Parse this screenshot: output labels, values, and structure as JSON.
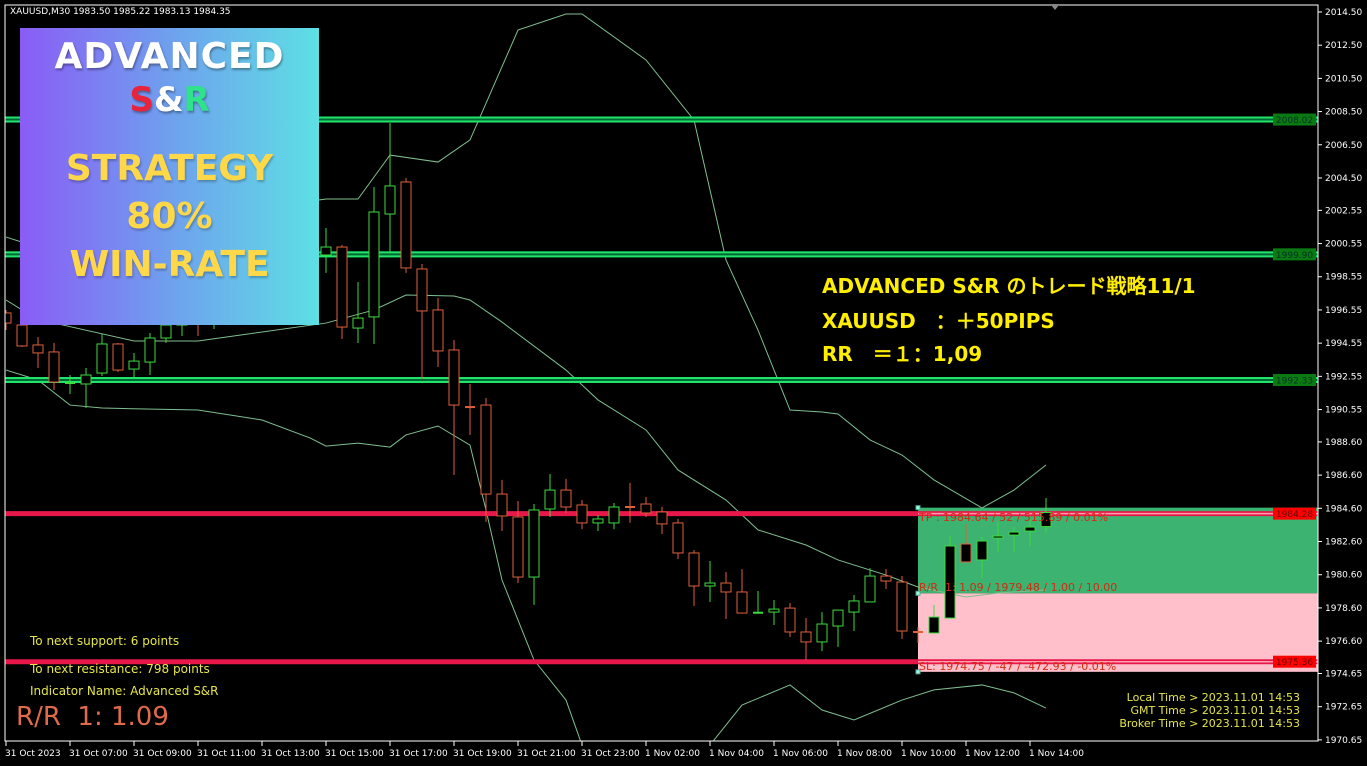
{
  "header": {
    "symbol_line": "XAUUSD,M30  1983.50 1985.22 1983.13 1984.35"
  },
  "banner": {
    "line1": "ADVANCED",
    "s": "S",
    "amp": "&",
    "r": "R",
    "line3": "STRATEGY",
    "line4": "80%",
    "line5": "WIN-RATE"
  },
  "overlay": {
    "title": "ADVANCED S&R のトレード戦略11/1",
    "result": "XAUUSD　：＋50PIPS",
    "rr": "RR　＝１：1,09"
  },
  "info": {
    "support": "To next support: 6 points",
    "resistance": "To next resistance: 798 points",
    "indicator": "Indicator Name: Advanced S&R",
    "rr_big": "R/R  1: 1.09"
  },
  "clock": {
    "local": "Local Time > 2023.11.01 14:53",
    "gmt": "GMT Time > 2023.11.01 14:53",
    "broker": "Broker Time > 2023.11.01 14:53"
  },
  "position": {
    "tp_label": "TP : 1984.64 / 52 / 515.89 / 0.01%",
    "rr_label": "R/R  1: 1.09 / 1979.48 / 1.00 / 10.00",
    "sl_label": "SL: 1974.75 / -47 / -472.93 / -0.01%",
    "tp": 1984.64,
    "entry": 1979.48,
    "sl": 1974.75,
    "start_time": "11-01 10:30",
    "profit_color": "#3cb371",
    "loss_color": "#ffc0cb"
  },
  "colors": {
    "bull": "#3ddc3d",
    "bear": "#e0603a",
    "band": "#7fbf8f",
    "support": "#22e36a",
    "resistance": "#e8174a"
  },
  "chart_data": {
    "type": "candlestick",
    "symbol": "XAUUSD",
    "timeframe": "M30",
    "ylim": [
      1970.65,
      2014.5
    ],
    "y_ticks": [
      "2014.50",
      "2012.50",
      "2010.50",
      "2008.50",
      "2006.50",
      "2004.50",
      "2002.55",
      "2000.55",
      "1998.55",
      "1996.55",
      "1994.55",
      "1992.55",
      "1990.55",
      "1988.60",
      "1986.60",
      "1984.60",
      "1982.60",
      "1980.60",
      "1978.60",
      "1976.60",
      "1974.65",
      "1972.65",
      "1970.65"
    ],
    "x_ticks": [
      {
        "t": "10-31 05:00",
        "label": "31 Oct 2023"
      },
      {
        "t": "10-31 07:00",
        "label": "31 Oct 07:00"
      },
      {
        "t": "10-31 09:00",
        "label": "31 Oct 09:00"
      },
      {
        "t": "10-31 11:00",
        "label": "31 Oct 11:00"
      },
      {
        "t": "10-31 13:00",
        "label": "31 Oct 13:00"
      },
      {
        "t": "10-31 15:00",
        "label": "31 Oct 15:00"
      },
      {
        "t": "10-31 17:00",
        "label": "31 Oct 17:00"
      },
      {
        "t": "10-31 19:00",
        "label": "31 Oct 19:00"
      },
      {
        "t": "10-31 21:00",
        "label": "31 Oct 21:00"
      },
      {
        "t": "10-31 23:00",
        "label": "31 Oct 23:00"
      },
      {
        "t": "11-01 02:00",
        "label": "1 Nov 02:00"
      },
      {
        "t": "11-01 04:00",
        "label": "1 Nov 04:00"
      },
      {
        "t": "11-01 06:00",
        "label": "1 Nov 06:00"
      },
      {
        "t": "11-01 08:00",
        "label": "1 Nov 08:00"
      },
      {
        "t": "11-01 10:00",
        "label": "1 Nov 10:00"
      },
      {
        "t": "11-01 12:00",
        "label": "1 Nov 12:00"
      },
      {
        "t": "11-01 14:00",
        "label": "1 Nov 14:00"
      }
    ],
    "candles_columns": [
      "time",
      "open",
      "high",
      "low",
      "close"
    ],
    "candles": [
      [
        "10-31 05:00",
        1996.37,
        1996.55,
        1995.34,
        1995.76
      ],
      [
        "10-31 05:30",
        1995.64,
        1995.94,
        1994.32,
        1994.38
      ],
      [
        "10-31 06:00",
        1994.44,
        1994.92,
        1993.05,
        1993.96
      ],
      [
        "10-31 06:30",
        1994.02,
        1994.56,
        1991.73,
        1992.21
      ],
      [
        "10-31 07:00",
        1992.09,
        1992.63,
        1991.49,
        1992.15
      ],
      [
        "10-31 07:30",
        1992.09,
        1993.05,
        1990.64,
        1992.63
      ],
      [
        "10-31 08:00",
        1992.75,
        1995.1,
        1992.57,
        1994.5
      ],
      [
        "10-31 08:30",
        1994.5,
        1994.56,
        1992.81,
        1992.93
      ],
      [
        "10-31 09:00",
        1992.99,
        1993.96,
        1992.45,
        1993.47
      ],
      [
        "10-31 09:30",
        1993.41,
        1995.16,
        1992.63,
        1994.86
      ],
      [
        "10-31 10:00",
        1994.86,
        1995.94,
        1994.56,
        1995.64
      ],
      [
        "10-31 10:30",
        1995.64,
        1996.25,
        1994.98,
        1996.06
      ],
      [
        "10-31 11:00",
        1996.25,
        1996.43,
        1994.98,
        1995.94
      ],
      [
        "10-31 11:30",
        1995.94,
        1996.85,
        1995.4,
        1996.43
      ],
      [
        "10-31 12:00",
        null,
        null,
        null,
        null
      ],
      [
        "10-31 12:30",
        null,
        null,
        null,
        null
      ],
      [
        "10-31 13:00",
        null,
        null,
        null,
        null
      ],
      [
        "10-31 13:30",
        null,
        null,
        null,
        null
      ],
      [
        "10-31 14:00",
        null,
        null,
        null,
        null
      ],
      [
        "10-31 14:30",
        null,
        null,
        null,
        null
      ],
      [
        "10-31 15:00",
        1999.86,
        2001.49,
        1998.78,
        2000.34
      ],
      [
        "10-31 15:30",
        2000.34,
        2000.46,
        1994.8,
        1995.52
      ],
      [
        "10-31 16:00",
        1995.46,
        1998.23,
        1994.56,
        1996.06
      ],
      [
        "10-31 16:30",
        1996.13,
        2003.96,
        1994.5,
        2002.45
      ],
      [
        "10-31 17:00",
        2002.33,
        2007.81,
        1999.98,
        2004.02
      ],
      [
        "10-31 17:30",
        2004.26,
        2004.5,
        1998.78,
        1999.08
      ],
      [
        "10-31 18:00",
        1999.02,
        1999.32,
        1992.39,
        1996.49
      ],
      [
        "10-31 18:30",
        1996.55,
        1997.27,
        1993.11,
        1994.08
      ],
      [
        "10-31 19:00",
        1994.14,
        1994.74,
        1986.61,
        1990.82
      ],
      [
        "10-31 19:30",
        1990.7,
        1992.09,
        1989.02,
        1990.68
      ],
      [
        "10-31 20:00",
        1990.82,
        1991.25,
        1983.78,
        1985.46
      ],
      [
        "10-31 20:30",
        1985.46,
        1986.31,
        1983.23,
        1984.14
      ],
      [
        "10-31 21:00",
        1984.08,
        1985.04,
        1980.1,
        1980.46
      ],
      [
        "10-31 21:30",
        1980.46,
        1984.86,
        1978.78,
        1984.5
      ],
      [
        "10-31 22:00",
        1984.56,
        1986.67,
        1984.08,
        1985.7
      ],
      [
        "10-31 22:30",
        1985.7,
        1986.37,
        1984.32,
        1984.68
      ],
      [
        "10-31 23:00",
        1984.8,
        1985.1,
        1983.35,
        1983.72
      ],
      [
        "10-31 23:30",
        1983.72,
        1984.2,
        1983.23,
        1983.96
      ],
      [
        "11-01 01:00",
        1983.72,
        1984.92,
        1983.35,
        1984.68
      ],
      [
        "11-01 01:30",
        1984.68,
        1986.13,
        1983.72,
        1984.62
      ],
      [
        "11-01 02:00",
        1984.86,
        1985.28,
        1984.08,
        1984.32
      ],
      [
        "11-01 02:30",
        1984.38,
        1984.68,
        1983.05,
        1983.66
      ],
      [
        "11-01 03:00",
        1983.72,
        1983.96,
        1981.55,
        1981.91
      ],
      [
        "11-01 03:30",
        1981.91,
        1982.09,
        1978.72,
        1979.92
      ],
      [
        "11-01 04:00",
        1979.92,
        1981.43,
        1978.96,
        1980.1
      ],
      [
        "11-01 04:30",
        1980.1,
        1980.76,
        1977.93,
        1979.56
      ],
      [
        "11-01 05:00",
        1979.56,
        1980.94,
        1978.29,
        1978.29
      ],
      [
        "11-01 05:30",
        1978.29,
        1979.62,
        1978.29,
        1978.31
      ],
      [
        "11-01 06:00",
        1978.35,
        1979.08,
        1977.57,
        1978.53
      ],
      [
        "11-01 06:30",
        1978.59,
        1978.9,
        1976.85,
        1977.15
      ],
      [
        "11-01 07:00",
        1977.15,
        1977.99,
        1975.46,
        1976.55
      ],
      [
        "11-01 07:30",
        1976.55,
        1978.35,
        1976.0,
        1977.63
      ],
      [
        "11-01 08:00",
        1977.51,
        1978.47,
        1976.25,
        1978.47
      ],
      [
        "11-01 08:30",
        1978.35,
        1979.38,
        1977.21,
        1979.02
      ],
      [
        "11-01 09:00",
        1978.96,
        1981.0,
        1978.96,
        1980.52
      ],
      [
        "11-01 09:30",
        1980.52,
        1980.94,
        1979.74,
        1980.22
      ],
      [
        "11-01 10:00",
        1980.16,
        1980.52,
        1976.73,
        1977.21
      ],
      [
        "11-01 10:30",
        1977.15,
        1977.45,
        1976.49,
        1977.12
      ],
      [
        "11-01 11:00",
        1977.09,
        1978.78,
        1977.09,
        1978.05
      ],
      [
        "11-01 11:30",
        1977.99,
        1982.93,
        1977.99,
        1982.33
      ],
      [
        "11-01 12:00",
        1982.45,
        1983.66,
        1981.37,
        1981.37
      ],
      [
        "11-01 12:30",
        1981.49,
        1982.87,
        1980.4,
        1982.63
      ],
      [
        "11-01 13:00",
        1982.81,
        1983.78,
        1981.97,
        1982.93
      ],
      [
        "11-01 13:30",
        1982.99,
        1983.47,
        1981.97,
        1983.17
      ],
      [
        "11-01 14:00",
        1983.23,
        1984.02,
        1982.33,
        1983.47
      ],
      [
        "11-01 14:30",
        1983.5,
        1985.22,
        1983.13,
        1984.35
      ]
    ],
    "bands": {
      "upper": [
        [
          "10-31 05:00",
          2000.94
        ],
        [
          "10-31 05:30",
          2000.64
        ],
        [
          "10-31 15:00",
          2003.23
        ],
        [
          "10-31 16:00",
          2003.23
        ],
        [
          "10-31 17:00",
          2005.88
        ],
        [
          "10-31 18:30",
          2005.46
        ],
        [
          "10-31 19:30",
          2006.79
        ],
        [
          "10-31 21:00",
          2013.41
        ],
        [
          "10-31 22:30",
          2014.38
        ],
        [
          "10-31 23:00",
          2014.38
        ],
        [
          "11-01 02:00",
          2011.61
        ],
        [
          "11-01 03:30",
          2007.99
        ],
        [
          "11-01 04:30",
          1999.56
        ],
        [
          "11-01 05:30",
          1995.34
        ],
        [
          "11-01 06:30",
          1990.52
        ],
        [
          "11-01 07:30",
          1990.4
        ],
        [
          "11-01 08:00",
          1990.28
        ],
        [
          "11-01 09:00",
          1988.72
        ],
        [
          "11-01 10:00",
          1987.81
        ],
        [
          "11-01 11:00",
          1986.31
        ],
        [
          "11-01 12:30",
          1984.62
        ],
        [
          "11-01 13:30",
          1985.7
        ],
        [
          "11-01 14:30",
          1987.21
        ]
      ],
      "middle": [
        [
          "10-31 05:00",
          1997.15
        ],
        [
          "10-31 05:30",
          1996.55
        ],
        [
          "10-31 06:30",
          1995.76
        ],
        [
          "10-31 09:00",
          1994.68
        ],
        [
          "10-31 11:00",
          1994.68
        ],
        [
          "10-31 15:00",
          1995.76
        ],
        [
          "10-31 16:30",
          1996.55
        ],
        [
          "10-31 17:30",
          1997.45
        ],
        [
          "10-31 19:00",
          1997.39
        ],
        [
          "10-31 19:30",
          1997.15
        ],
        [
          "10-31 20:30",
          1995.82
        ],
        [
          "10-31 22:30",
          1992.93
        ],
        [
          "10-31 23:30",
          1991.13
        ],
        [
          "11-01 02:00",
          1989.32
        ],
        [
          "11-01 03:00",
          1986.91
        ],
        [
          "11-01 04:30",
          1985.1
        ],
        [
          "11-01 05:30",
          1983.3
        ],
        [
          "11-01 07:00",
          1982.39
        ],
        [
          "11-01 08:00",
          1981.49
        ],
        [
          "11-01 09:30",
          1980.58
        ],
        [
          "11-01 10:30",
          1979.86
        ],
        [
          "11-01 12:00",
          1979.26
        ],
        [
          "11-01 13:00",
          1979.5
        ],
        [
          "11-01 14:30",
          1979.68
        ]
      ],
      "lower": [
        [
          "10-31 05:00",
          1992.93
        ],
        [
          "10-31 06:00",
          1992.33
        ],
        [
          "10-31 07:00",
          1990.82
        ],
        [
          "10-31 08:00",
          1990.64
        ],
        [
          "10-31 11:00",
          1990.52
        ],
        [
          "10-31 13:00",
          1989.92
        ],
        [
          "10-31 14:30",
          1988.84
        ],
        [
          "10-31 15:00",
          1988.35
        ],
        [
          "10-31 16:00",
          1988.53
        ],
        [
          "10-31 17:00",
          1988.29
        ],
        [
          "10-31 17:30",
          1989.02
        ],
        [
          "10-31 18:30",
          1989.56
        ],
        [
          "10-31 19:30",
          1988.41
        ],
        [
          "10-31 20:00",
          1984.5
        ],
        [
          "10-31 20:30",
          1980.28
        ],
        [
          "10-31 21:30",
          1975.46
        ],
        [
          "10-31 22:30",
          1973.05
        ],
        [
          "10-31 23:00",
          1970.34
        ],
        [
          "11-01 04:00",
          1970.34
        ],
        [
          "11-01 05:00",
          1972.75
        ],
        [
          "11-01 06:30",
          1973.96
        ],
        [
          "11-01 07:30",
          1972.45
        ],
        [
          "11-01 08:30",
          1971.85
        ],
        [
          "11-01 10:00",
          1973.05
        ],
        [
          "11-01 11:00",
          1973.66
        ],
        [
          "11-01 12:30",
          1973.96
        ],
        [
          "11-01 13:30",
          1973.48
        ],
        [
          "11-01 14:30",
          1972.57
        ]
      ]
    },
    "support_levels": [
      "2008.02",
      "1999.90",
      "1992.33"
    ],
    "resistance_levels": [
      "1984.28",
      "1975.36"
    ],
    "grid": false
  }
}
